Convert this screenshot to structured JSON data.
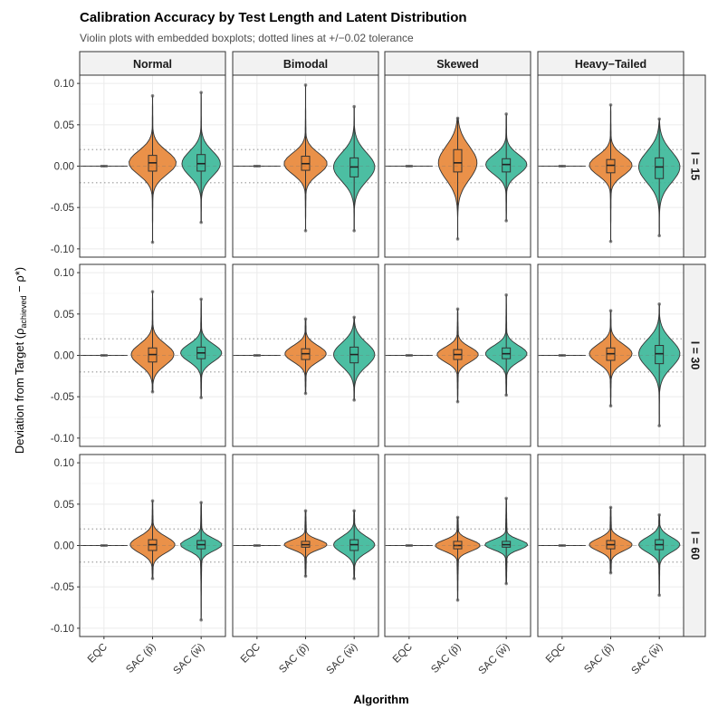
{
  "title": "Calibration Accuracy by Test Length and Latent Distribution",
  "subtitle": "Violin plots with embedded boxplots; dotted lines at +/−0.02 tolerance",
  "colors": {
    "EQC": "#555555",
    "SAC_p": "#E8883A",
    "SAC_w": "#3DB89A",
    "strip_bg": "#f2f2f2",
    "grid": "#ebebeb",
    "tolerance": "#9a9a9a"
  },
  "chart_data": {
    "type": "violin",
    "xlabel": "Algorithm",
    "ylabel_main": "Deviation from Target (ρ",
    "ylabel_sub": "achieved",
    "ylabel_tail": " − ρ*)",
    "ylim": [
      -0.11,
      0.11
    ],
    "yticks": [
      -0.1,
      -0.05,
      0.0,
      0.05,
      0.1
    ],
    "ytick_labels": [
      "-0.10",
      "-0.05",
      "0.00",
      "0.05",
      "0.10"
    ],
    "tolerance": 0.02,
    "columns": [
      "Normal",
      "Bimodal",
      "Skewed",
      "Heavy−Tailed"
    ],
    "rows": [
      "I = 15",
      "I = 30",
      "I = 60"
    ],
    "categories": [
      "EQC",
      "SAC (p̂)",
      "SAC (w̅)"
    ],
    "panels": [
      [
        [
          {
            "min": 0,
            "max": 0,
            "q1": 0,
            "med": 0,
            "q3": 0,
            "width": 0
          },
          {
            "min": -0.092,
            "max": 0.085,
            "q1": -0.006,
            "med": 0.004,
            "q3": 0.013,
            "width": 0.55
          },
          {
            "min": -0.068,
            "max": 0.089,
            "q1": -0.006,
            "med": 0.003,
            "q3": 0.014,
            "width": 0.45
          }
        ],
        [
          {
            "min": 0,
            "max": 0,
            "q1": 0,
            "med": 0,
            "q3": 0,
            "width": 0
          },
          {
            "min": -0.078,
            "max": 0.098,
            "q1": -0.005,
            "med": 0.003,
            "q3": 0.012,
            "width": 0.5
          },
          {
            "min": -0.078,
            "max": 0.072,
            "q1": -0.013,
            "med": -0.001,
            "q3": 0.01,
            "width": 0.48
          }
        ],
        [
          {
            "min": 0,
            "max": 0,
            "q1": 0,
            "med": 0,
            "q3": 0,
            "width": 0
          },
          {
            "min": -0.088,
            "max": 0.058,
            "q1": -0.007,
            "med": 0.004,
            "q3": 0.02,
            "width": 0.45
          },
          {
            "min": -0.066,
            "max": 0.063,
            "q1": -0.007,
            "med": 0.002,
            "q3": 0.009,
            "width": 0.48
          }
        ],
        [
          {
            "min": 0,
            "max": 0,
            "q1": 0,
            "med": 0,
            "q3": 0,
            "width": 0
          },
          {
            "min": -0.091,
            "max": 0.074,
            "q1": -0.008,
            "med": 0.001,
            "q3": 0.008,
            "width": 0.5
          },
          {
            "min": -0.084,
            "max": 0.057,
            "q1": -0.015,
            "med": -0.001,
            "q3": 0.01,
            "width": 0.48
          }
        ]
      ],
      [
        [
          {
            "min": 0,
            "max": 0,
            "q1": 0,
            "med": 0,
            "q3": 0,
            "width": 0
          },
          {
            "min": -0.044,
            "max": 0.077,
            "q1": -0.008,
            "med": 0.001,
            "q3": 0.009,
            "width": 0.5
          },
          {
            "min": -0.051,
            "max": 0.068,
            "q1": -0.004,
            "med": 0.003,
            "q3": 0.01,
            "width": 0.48
          }
        ],
        [
          {
            "min": 0,
            "max": 0,
            "q1": 0,
            "med": 0,
            "q3": 0,
            "width": 0
          },
          {
            "min": -0.046,
            "max": 0.044,
            "q1": -0.005,
            "med": 0.002,
            "q3": 0.008,
            "width": 0.48
          },
          {
            "min": -0.054,
            "max": 0.046,
            "q1": -0.009,
            "med": 0.001,
            "q3": 0.01,
            "width": 0.48
          }
        ],
        [
          {
            "min": 0,
            "max": 0,
            "q1": 0,
            "med": 0,
            "q3": 0,
            "width": 0
          },
          {
            "min": -0.056,
            "max": 0.056,
            "q1": -0.005,
            "med": 0.001,
            "q3": 0.007,
            "width": 0.48
          },
          {
            "min": -0.048,
            "max": 0.073,
            "q1": -0.004,
            "med": 0.002,
            "q3": 0.009,
            "width": 0.48
          }
        ],
        [
          {
            "min": 0,
            "max": 0,
            "q1": 0,
            "med": 0,
            "q3": 0,
            "width": 0
          },
          {
            "min": -0.061,
            "max": 0.054,
            "q1": -0.006,
            "med": 0.002,
            "q3": 0.009,
            "width": 0.5
          },
          {
            "min": -0.085,
            "max": 0.062,
            "q1": -0.01,
            "med": 0.002,
            "q3": 0.012,
            "width": 0.48
          }
        ]
      ],
      [
        [
          {
            "min": 0,
            "max": 0,
            "q1": 0,
            "med": 0,
            "q3": 0,
            "width": 0
          },
          {
            "min": -0.04,
            "max": 0.054,
            "q1": -0.006,
            "med": 0.001,
            "q3": 0.007,
            "width": 0.52
          },
          {
            "min": -0.09,
            "max": 0.052,
            "q1": -0.004,
            "med": 0.001,
            "q3": 0.006,
            "width": 0.48
          }
        ],
        [
          {
            "min": 0,
            "max": 0,
            "q1": 0,
            "med": 0,
            "q3": 0,
            "width": 0
          },
          {
            "min": -0.037,
            "max": 0.042,
            "q1": -0.002,
            "med": 0.001,
            "q3": 0.005,
            "width": 0.5
          },
          {
            "min": -0.04,
            "max": 0.042,
            "q1": -0.006,
            "med": 0.001,
            "q3": 0.007,
            "width": 0.48
          }
        ],
        [
          {
            "min": 0,
            "max": 0,
            "q1": 0,
            "med": 0,
            "q3": 0,
            "width": 0
          },
          {
            "min": -0.066,
            "max": 0.034,
            "q1": -0.004,
            "med": 0.0,
            "q3": 0.005,
            "width": 0.52
          },
          {
            "min": -0.046,
            "max": 0.057,
            "q1": -0.002,
            "med": 0.001,
            "q3": 0.005,
            "width": 0.5
          }
        ],
        [
          {
            "min": 0,
            "max": 0,
            "q1": 0,
            "med": 0,
            "q3": 0,
            "width": 0
          },
          {
            "min": -0.033,
            "max": 0.046,
            "q1": -0.004,
            "med": 0.001,
            "q3": 0.006,
            "width": 0.5
          },
          {
            "min": -0.06,
            "max": 0.037,
            "q1": -0.005,
            "med": 0.001,
            "q3": 0.007,
            "width": 0.48
          }
        ]
      ]
    ]
  }
}
